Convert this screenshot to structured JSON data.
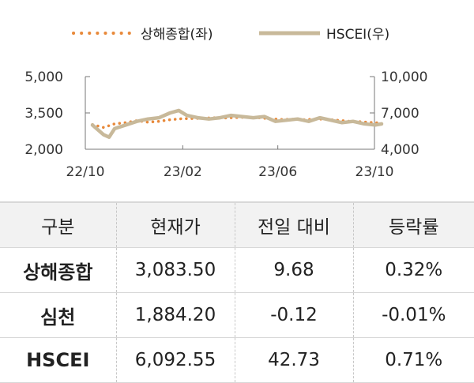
{
  "chart_data": {
    "type": "line",
    "x_ticks": [
      "22/10",
      "23/02",
      "23/06",
      "23/10"
    ],
    "x_range": [
      "2022-10",
      "2023-10"
    ],
    "y_left": {
      "ticks": [
        "5,000",
        "3,500",
        "2,000"
      ],
      "range": [
        2000,
        5000
      ]
    },
    "y_right": {
      "ticks": [
        "10,000",
        "7,000",
        "4,000"
      ],
      "range": [
        4000,
        10000
      ]
    },
    "series": [
      {
        "name": "상해종합(좌)",
        "axis": "left",
        "color": "#e8893a",
        "style": "dotted",
        "x": [
          "2022-10-10",
          "2022-10-24",
          "2022-11-07",
          "2022-11-21",
          "2022-12-05",
          "2022-12-19",
          "2023-01-02",
          "2023-01-16",
          "2023-01-30",
          "2023-02-13",
          "2023-02-27",
          "2023-03-13",
          "2023-03-27",
          "2023-04-10",
          "2023-04-24",
          "2023-05-08",
          "2023-05-22",
          "2023-06-05",
          "2023-06-19",
          "2023-07-03",
          "2023-07-17",
          "2023-07-31",
          "2023-08-14",
          "2023-08-28",
          "2023-09-11",
          "2023-09-25",
          "2023-10-10"
        ],
        "values": [
          3020,
          2900,
          3050,
          3100,
          3180,
          3120,
          3150,
          3220,
          3260,
          3270,
          3280,
          3300,
          3290,
          3310,
          3320,
          3300,
          3260,
          3230,
          3240,
          3220,
          3240,
          3250,
          3200,
          3160,
          3140,
          3110,
          3080
        ]
      },
      {
        "name": "HSCEI(우)",
        "axis": "right",
        "color": "#c8b99a",
        "style": "solid",
        "x": [
          "2022-10-10",
          "2022-10-24",
          "2022-10-31",
          "2022-11-07",
          "2022-11-21",
          "2022-12-05",
          "2022-12-19",
          "2023-01-02",
          "2023-01-16",
          "2023-01-27",
          "2023-02-06",
          "2023-02-20",
          "2023-03-06",
          "2023-03-20",
          "2023-04-03",
          "2023-04-17",
          "2023-05-01",
          "2023-05-15",
          "2023-05-29",
          "2023-06-12",
          "2023-06-26",
          "2023-07-10",
          "2023-07-24",
          "2023-08-07",
          "2023-08-21",
          "2023-09-04",
          "2023-09-18",
          "2023-10-02",
          "2023-10-10"
        ],
        "values": [
          6000,
          5200,
          5000,
          5700,
          6000,
          6300,
          6500,
          6600,
          7000,
          7200,
          6800,
          6600,
          6500,
          6600,
          6800,
          6700,
          6600,
          6700,
          6300,
          6400,
          6500,
          6300,
          6600,
          6400,
          6200,
          6300,
          6100,
          6000,
          6092.55
        ]
      }
    ]
  },
  "legend": [
    {
      "label": "상해종합(좌)",
      "icon": "dotted-line-icon"
    },
    {
      "label": "HSCEI(우)",
      "icon": "solid-line-icon"
    }
  ],
  "table": {
    "headers": [
      "구분",
      "현재가",
      "전일 대비",
      "등락률"
    ],
    "rows": [
      [
        "상해종합",
        "3,083.50",
        "9.68",
        "0.32%"
      ],
      [
        "심천",
        "1,884.20",
        "-0.12",
        "-0.01%"
      ],
      [
        "HSCEI",
        "6,092.55",
        "42.73",
        "0.71%"
      ]
    ]
  }
}
